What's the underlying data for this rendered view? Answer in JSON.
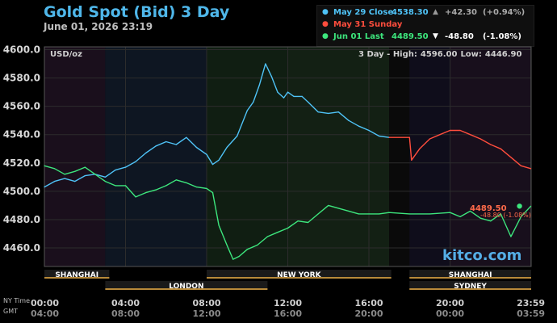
{
  "header": {
    "title": "Gold Spot (Bid) 3 Day",
    "subtitle": "June 01, 2026 23:19"
  },
  "legend": [
    {
      "label": "May 29 Close",
      "value": "4538.30",
      "arrow": "▲",
      "change": "+42.30",
      "percent": "(+0.94%)",
      "color": "#4fc3f7"
    },
    {
      "label": "May 31 Sunday",
      "value": "",
      "arrow": "",
      "change": "",
      "percent": "",
      "color": "#ff4d3d"
    },
    {
      "label": "Jun 01 Last",
      "value": "4489.50",
      "arrow": "▼",
      "change": "-48.80",
      "percent": "(-1.08%)",
      "color": "#3de67d"
    }
  ],
  "chart_info": {
    "unit": "USD/oz",
    "range_label": "3 Day - High:",
    "high": "4596.00",
    "low_label": "Low:",
    "low": "4446.90",
    "brand": "kitco.com",
    "last_price_marker": "4489.50",
    "last_change_marker": "-48.80 (-1.08%)",
    "ny_time_label": "NY Time",
    "gmt_label": "GMT"
  },
  "sessions_top": [
    "SHANGHAI",
    "NEW YORK",
    "SHANGHAI"
  ],
  "sessions_bottom": [
    "LONDON",
    "SYDNEY"
  ],
  "chart_data": {
    "type": "line",
    "title": "Gold Spot (Bid) 3 Day",
    "ylabel": "USD/oz",
    "ylim": [
      4446.9,
      4602
    ],
    "y_ticks": [
      "4460.0",
      "4480.0",
      "4500.0",
      "4520.0",
      "4540.0",
      "4560.0",
      "4580.0",
      "4600.0"
    ],
    "y_tick_values": [
      4460,
      4480,
      4500,
      4520,
      4540,
      4560,
      4580,
      4600
    ],
    "x_ticks_ny": [
      "00:00",
      "04:00",
      "08:00",
      "12:00",
      "16:00",
      "20:00",
      "23:59"
    ],
    "x_ticks_gmt": [
      "04:00",
      "08:00",
      "12:00",
      "16:00",
      "20:00",
      "00:00",
      "03:59"
    ],
    "x_tick_hours": [
      0,
      4,
      8,
      12,
      16,
      20,
      23.983
    ],
    "xlim": [
      0,
      24
    ],
    "grid": true,
    "series": [
      {
        "name": "May 29 Close",
        "color": "#4fc3f7",
        "x": [
          0,
          0.5,
          1,
          1.5,
          2,
          2.5,
          3,
          3.5,
          4,
          4.5,
          5,
          5.5,
          6,
          6.5,
          7,
          7.5,
          8,
          8.3,
          8.6,
          9,
          9.5,
          10,
          10.3,
          10.6,
          10.9,
          11.2,
          11.5,
          11.8,
          12,
          12.3,
          12.7,
          13,
          13.5,
          14,
          14.5,
          15,
          15.5,
          16,
          16.5,
          17
        ],
        "y": [
          4503,
          4507,
          4509,
          4507,
          4511,
          4512,
          4510,
          4515,
          4517,
          4521,
          4527,
          4532,
          4535,
          4533,
          4538,
          4531,
          4526,
          4519,
          4522,
          4531,
          4539,
          4557,
          4563,
          4575,
          4590,
          4581,
          4570,
          4566,
          4570,
          4567,
          4567,
          4563,
          4556,
          4555,
          4556,
          4550,
          4546,
          4543,
          4539,
          4538
        ]
      },
      {
        "name": "May 31 Sunday",
        "color": "#ff4d3d",
        "x": [
          17,
          18,
          18.1,
          18.5,
          19,
          19.5,
          20,
          20.5,
          21,
          21.5,
          22,
          22.5,
          23,
          23.5,
          23.983
        ],
        "y": [
          4538,
          4538,
          4522,
          4530,
          4537,
          4540,
          4543,
          4543,
          4540,
          4537,
          4533,
          4530,
          4524,
          4518,
          4516
        ]
      },
      {
        "name": "Jun 01 Last",
        "color": "#3de67d",
        "x": [
          0,
          0.5,
          1,
          1.5,
          2,
          2.5,
          3,
          3.5,
          4,
          4.5,
          5,
          5.5,
          6,
          6.5,
          7,
          7.5,
          8,
          8.3,
          8.6,
          9,
          9.3,
          9.6,
          10,
          10.5,
          11,
          11.5,
          12,
          12.5,
          13,
          13.5,
          14,
          14.5,
          15,
          15.5,
          16,
          16.5,
          17,
          18,
          19,
          20,
          20.5,
          21,
          21.5,
          22,
          22.5,
          23,
          23.5,
          23.983
        ],
        "y": [
          4518,
          4516,
          4512,
          4514,
          4517,
          4512,
          4507,
          4504,
          4504,
          4496,
          4499,
          4501,
          4504,
          4508,
          4506,
          4503,
          4502,
          4499,
          4476,
          4462,
          4452,
          4454,
          4459,
          4462,
          4468,
          4471,
          4474,
          4479,
          4478,
          4484,
          4490,
          4488,
          4486,
          4484,
          4484,
          4484,
          4485,
          4484,
          4484,
          4485,
          4482,
          4486,
          4481,
          4479,
          4484,
          4468,
          4482,
          4489.5
        ]
      }
    ]
  }
}
